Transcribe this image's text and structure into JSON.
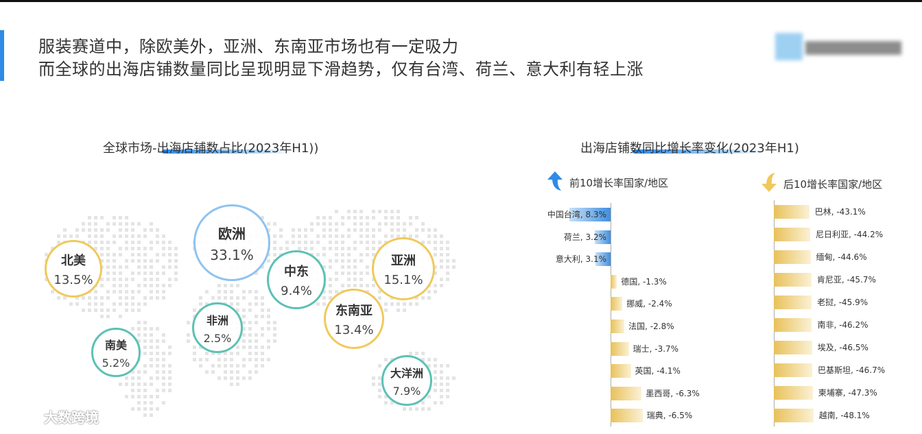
{
  "header": {
    "line1": "服装赛道中，除欧美外，亚洲、东南亚市场也有一定吸力",
    "line2": "而全球的出海店铺数量同比呈现明显下滑趋势，仅有台湾、荷兰、意大利有轻上涨"
  },
  "watermark": {
    "text": "大数跨境",
    "icon": "brand-logo-icon"
  },
  "colors": {
    "accent": "#2f8be6",
    "positive_bar": "#3f8fe0",
    "negative_bar": "#e8c15a",
    "teal_ring": "#5cc1b4",
    "gold_ring": "#f0c95c",
    "blue_ring": "#8fc3ef"
  },
  "chart_data": [
    {
      "type": "bubble-map",
      "title": "全球市场-出海店铺数占比(2023年H1))",
      "regions": [
        {
          "name": "欧洲",
          "value": "33.1%",
          "color": "blue"
        },
        {
          "name": "北美",
          "value": "13.5%",
          "color": "gold"
        },
        {
          "name": "亚洲",
          "value": "15.1%",
          "color": "gold"
        },
        {
          "name": "中东",
          "value": "9.4%",
          "color": "teal"
        },
        {
          "name": "东南亚",
          "value": "13.4%",
          "color": "gold"
        },
        {
          "name": "非洲",
          "value": "2.5%",
          "color": "teal"
        },
        {
          "name": "南美",
          "value": "5.2%",
          "color": "teal"
        },
        {
          "name": "大洋洲",
          "value": "7.9%",
          "color": "teal"
        }
      ]
    },
    {
      "type": "bar",
      "title": "出海店铺数同比增长率变化(2023年H1)",
      "unit": "%",
      "top10": {
        "label": "前10增长率国家/地区",
        "icon": "arrow-up-icon",
        "categories": [
          "中国台湾",
          "荷兰",
          "意大利",
          "德国",
          "挪威",
          "法国",
          "瑞士",
          "英国",
          "墨西哥",
          "瑞典"
        ],
        "values": [
          8.3,
          3.2,
          3.1,
          -1.3,
          -2.4,
          -2.8,
          -3.7,
          -4.1,
          -6.3,
          -6.5
        ],
        "labels": [
          "中国台湾, 8.3%",
          "荷兰, 3.2%",
          "意大利, 3.1%",
          "德国, -1.3%",
          "挪威, -2.4%",
          "法国, -2.8%",
          "瑞士, -3.7%",
          "英国, -4.1%",
          "墨西哥, -6.3%",
          "瑞典, -6.5%"
        ]
      },
      "bottom10": {
        "label": "后10增长率国家/地区",
        "icon": "arrow-down-icon",
        "categories": [
          "巴林",
          "尼日利亚",
          "缅甸",
          "肯尼亚",
          "老挝",
          "南非",
          "埃及",
          "巴基斯坦",
          "柬埔寨",
          "越南"
        ],
        "values": [
          -43.1,
          -44.2,
          -44.6,
          -45.7,
          -45.9,
          -46.2,
          -46.5,
          -46.7,
          -47.3,
          -48.1
        ],
        "labels": [
          "巴林, -43.1%",
          "尼日利亚, -44.2%",
          "缅甸, -44.6%",
          "肯尼亚, -45.7%",
          "老挝, -45.9%",
          "南非, -46.2%",
          "埃及, -46.5%",
          "巴基斯坦, -46.7%",
          "柬埔寨, -47.3%",
          "越南, -48.1%"
        ]
      }
    }
  ]
}
